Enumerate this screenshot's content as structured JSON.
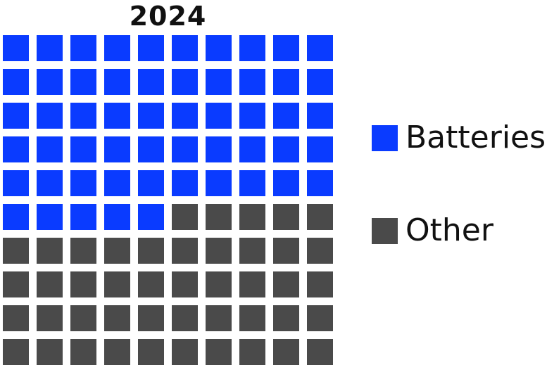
{
  "chart_data": {
    "type": "waffle",
    "title": "2024",
    "grid": {
      "rows": 10,
      "cols": 10,
      "total": 100
    },
    "categories": [
      "Batteries",
      "Other"
    ],
    "values": [
      55,
      45
    ],
    "colors": {
      "Batteries": "#0A3BFF",
      "Other": "#4A4A4A"
    },
    "fill_order": "row-major from top-left",
    "legend": {
      "placement": "right"
    }
  }
}
